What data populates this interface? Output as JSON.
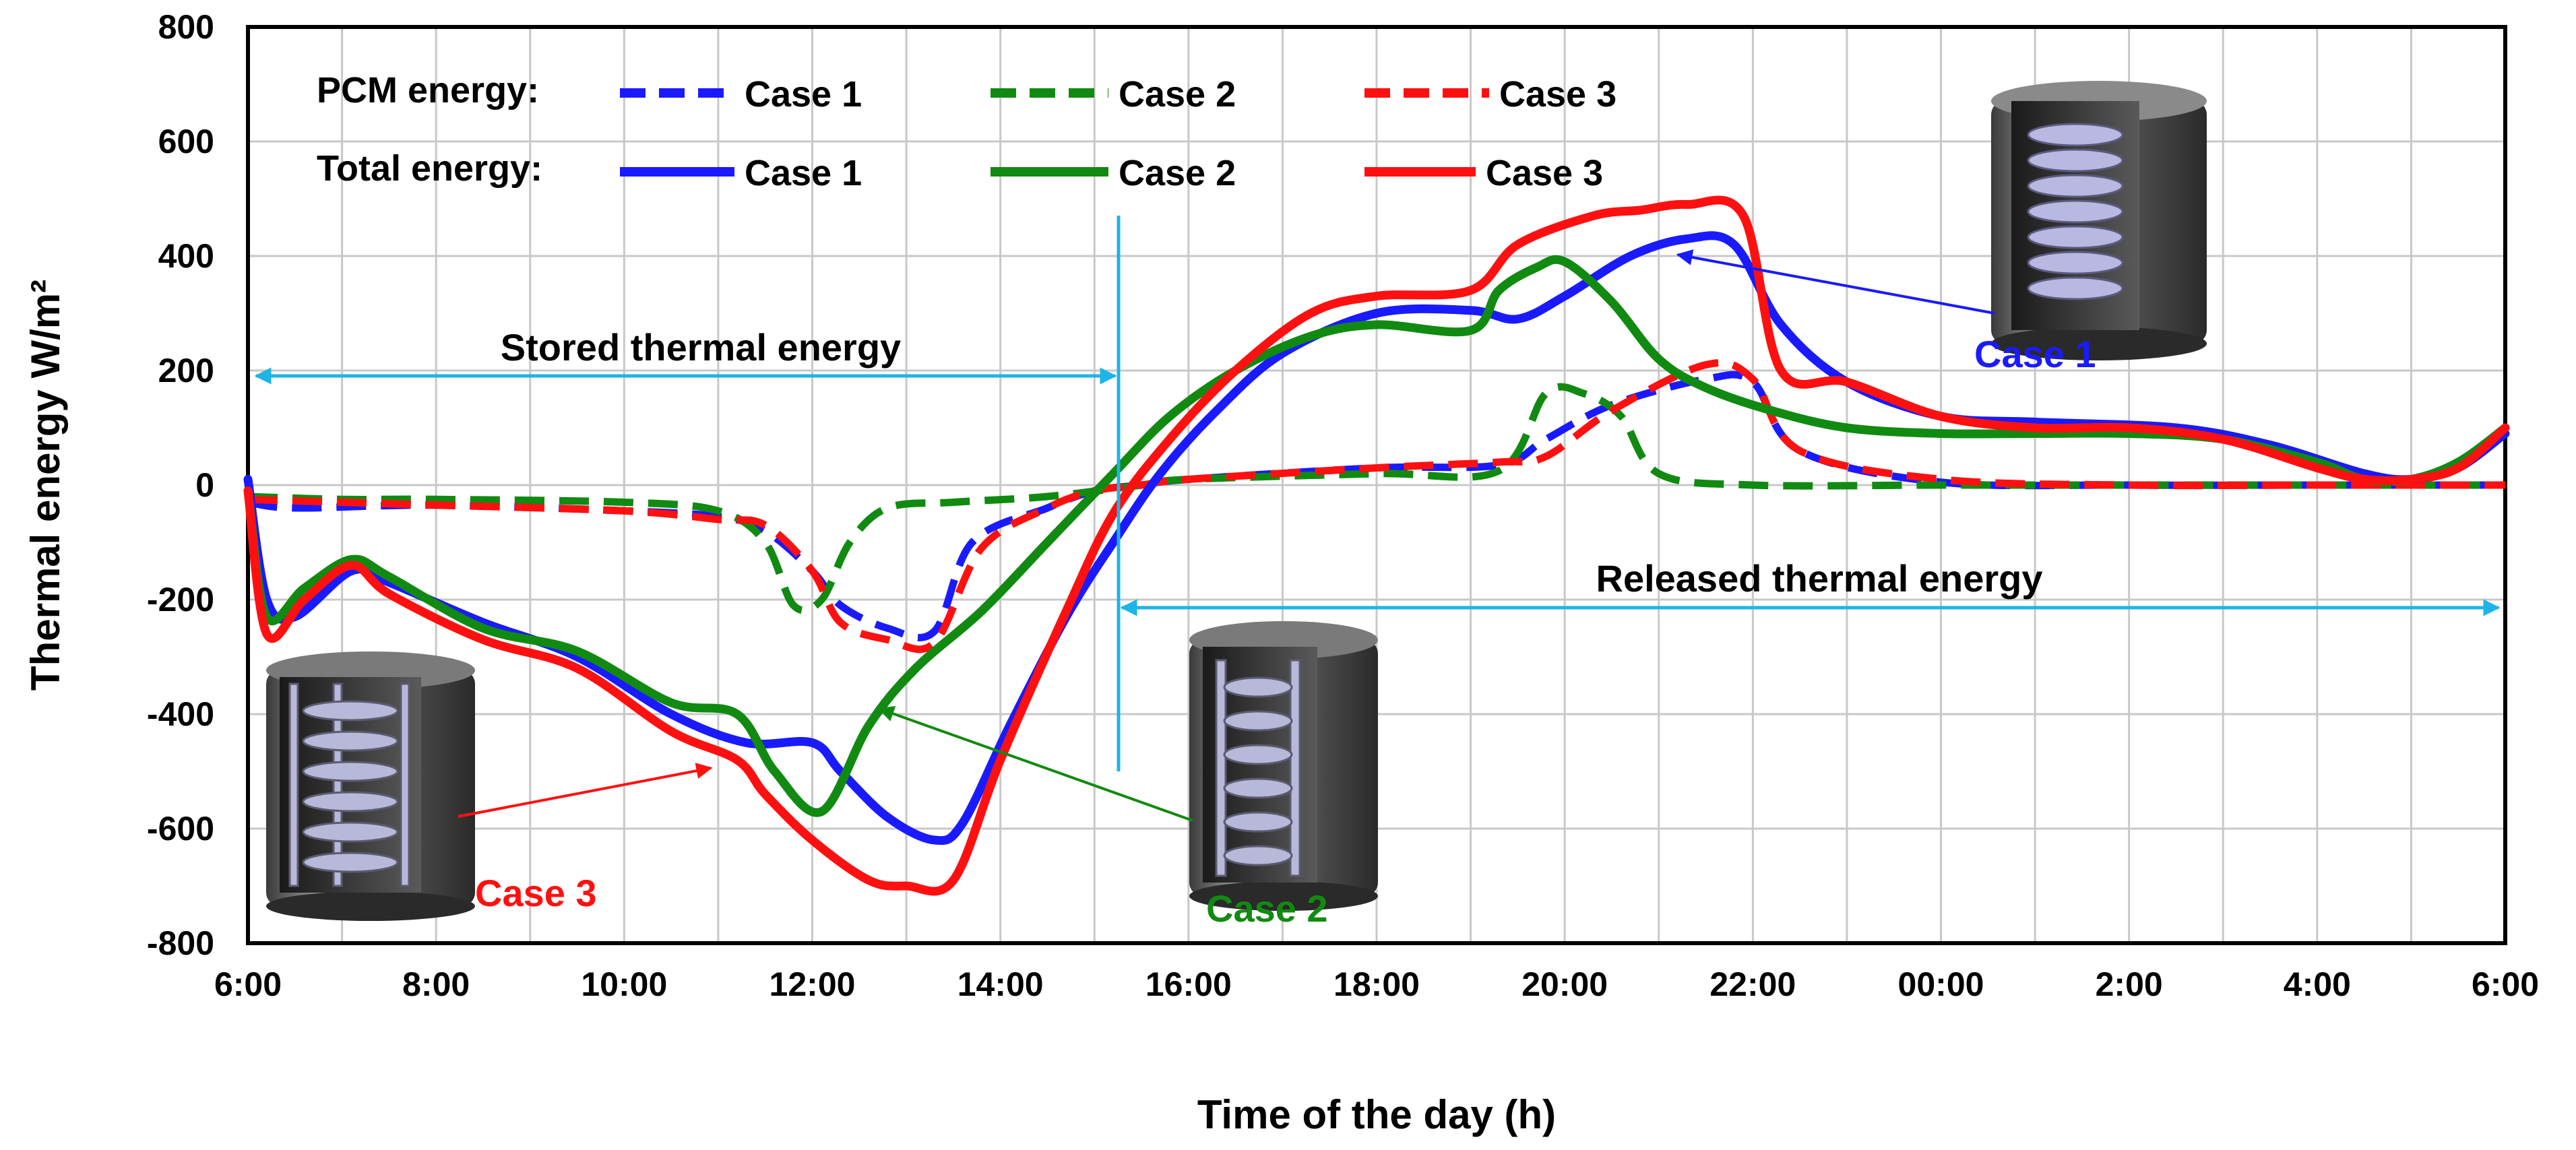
{
  "chart_data": {
    "type": "line",
    "title": "",
    "xlabel": "Time of the day (h)",
    "ylabel": "Thermal energy W/m²",
    "ylim": [
      -800,
      800
    ],
    "xlim": [
      6,
      30
    ],
    "y_ticks": [
      "800",
      "600",
      "400",
      "200",
      "0",
      "-200",
      "-400",
      "-600",
      "-800"
    ],
    "x_ticks": [
      "6:00",
      "8:00",
      "10:00",
      "12:00",
      "14:00",
      "16:00",
      "18:00",
      "20:00",
      "22:00",
      "00:00",
      "2:00",
      "4:00",
      "6:00"
    ],
    "grid": true,
    "legend": {
      "placement": "top-left",
      "pcm_label": "PCM energy:",
      "total_label": "Total energy:",
      "entries": [
        "Case 1",
        "Case 2",
        "Case 3"
      ]
    },
    "colors": {
      "case1": "#1a1aff",
      "case2": "#118a11",
      "case3": "#ff1010",
      "marker": "#1eb4e6"
    },
    "series": [
      {
        "name": "PCM energy Case 1",
        "style": "dashed",
        "color": "#1a1aff",
        "x": [
          6,
          6.5,
          8,
          10,
          11,
          11.5,
          12,
          12.3,
          12.8,
          13.3,
          13.7,
          14.5,
          15,
          15.5,
          16,
          18,
          19.3,
          19.8,
          20.5,
          21.5,
          22,
          22.5,
          24,
          26,
          28,
          30
        ],
        "y": [
          -30,
          -40,
          -35,
          -45,
          -55,
          -80,
          -150,
          -210,
          -250,
          -255,
          -100,
          -40,
          -10,
          0,
          10,
          30,
          35,
          80,
          140,
          185,
          180,
          60,
          5,
          0,
          0,
          0
        ]
      },
      {
        "name": "PCM energy Case 2",
        "style": "dashed",
        "color": "#118a11",
        "x": [
          6,
          7,
          8,
          10,
          11,
          11.5,
          11.8,
          12.1,
          12.4,
          12.8,
          13.5,
          14.5,
          15.5,
          16,
          18,
          19.3,
          19.8,
          20.2,
          20.6,
          21,
          22,
          24,
          26,
          28,
          30
        ],
        "y": [
          -20,
          -25,
          -25,
          -30,
          -45,
          -100,
          -210,
          -200,
          -100,
          -40,
          -30,
          -20,
          0,
          10,
          20,
          25,
          160,
          160,
          120,
          20,
          0,
          0,
          0,
          0,
          0
        ]
      },
      {
        "name": "PCM energy Case 3",
        "style": "dashed",
        "color": "#ff1010",
        "x": [
          6,
          7,
          8,
          10,
          11,
          11.5,
          12,
          12.3,
          12.8,
          13.3,
          13.8,
          14.5,
          15,
          15.5,
          16,
          18,
          19.3,
          19.8,
          20.5,
          21.5,
          22,
          22.5,
          24,
          26,
          28,
          30
        ],
        "y": [
          -25,
          -30,
          -35,
          -45,
          -60,
          -70,
          -150,
          -240,
          -270,
          -275,
          -110,
          -40,
          -10,
          0,
          10,
          30,
          40,
          50,
          130,
          210,
          185,
          60,
          10,
          0,
          0,
          0
        ]
      },
      {
        "name": "Total energy Case 1",
        "style": "solid",
        "color": "#1a1aff",
        "x": [
          6,
          6.2,
          6.5,
          7.1,
          7.5,
          8.5,
          9.5,
          10.5,
          11.3,
          12,
          12.3,
          12.8,
          13.3,
          13.6,
          14.1,
          14.7,
          15.2,
          15.7,
          16.3,
          17,
          18,
          19,
          19.5,
          20,
          20.7,
          21.3,
          21.8,
          22.3,
          23,
          24,
          25,
          26.5,
          27.5,
          28.5,
          29,
          29.5,
          30
        ],
        "y": [
          10,
          -200,
          -230,
          -150,
          -170,
          -240,
          -300,
          -400,
          -450,
          -450,
          -500,
          -580,
          -620,
          -590,
          -420,
          -230,
          -100,
          20,
          130,
          230,
          300,
          305,
          290,
          330,
          400,
          430,
          420,
          280,
          180,
          120,
          110,
          100,
          70,
          20,
          10,
          30,
          90
        ]
      },
      {
        "name": "Total energy Case 2",
        "style": "solid",
        "color": "#118a11",
        "x": [
          6,
          6.2,
          6.6,
          7.1,
          7.5,
          8.5,
          9.5,
          10.5,
          11.2,
          11.6,
          12.1,
          12.6,
          13.1,
          13.8,
          14.5,
          15.2,
          15.8,
          16.5,
          17.3,
          18,
          19,
          19.3,
          19.7,
          20,
          20.5,
          21,
          21.5,
          22.2,
          23,
          24,
          25,
          26,
          27,
          28,
          28.5,
          29,
          29.5,
          30
        ],
        "y": [
          -10,
          -230,
          -180,
          -130,
          -160,
          -250,
          -290,
          -380,
          -400,
          -500,
          -570,
          -420,
          -320,
          -220,
          -100,
          20,
          120,
          200,
          260,
          280,
          270,
          340,
          380,
          390,
          320,
          220,
          170,
          130,
          100,
          90,
          90,
          90,
          80,
          40,
          10,
          10,
          40,
          100
        ]
      },
      {
        "name": "Total energy Case 3",
        "style": "solid",
        "color": "#ff1010",
        "x": [
          6,
          6.2,
          6.6,
          7.1,
          7.5,
          8.5,
          9.5,
          10.5,
          11.2,
          11.5,
          12,
          12.6,
          13,
          13.5,
          14,
          14.7,
          15.2,
          15.8,
          16.5,
          17.3,
          18,
          19,
          19.5,
          20.3,
          20.8,
          21.3,
          21.9,
          22.3,
          23,
          24,
          25,
          26,
          27,
          28,
          28.5,
          29,
          29.5,
          30
        ],
        "y": [
          -10,
          -260,
          -200,
          -140,
          -190,
          -270,
          -320,
          -430,
          -480,
          -540,
          -620,
          -690,
          -700,
          -690,
          -480,
          -220,
          -50,
          80,
          200,
          300,
          330,
          340,
          420,
          470,
          480,
          490,
          470,
          200,
          180,
          120,
          100,
          100,
          80,
          30,
          10,
          10,
          30,
          100
        ]
      }
    ],
    "annotations": {
      "stored": "Stored thermal energy",
      "released": "Released thermal energy",
      "case1": "Case 1",
      "case2": "Case 2",
      "case3": "Case 3"
    }
  }
}
